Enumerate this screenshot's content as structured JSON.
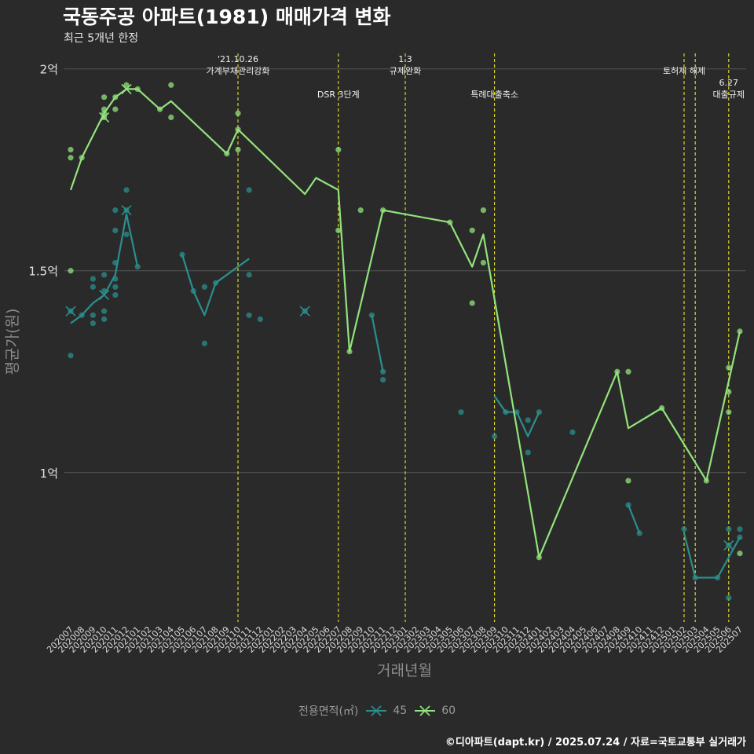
{
  "title": "국동주공 아파트(1981) 매매가격 변화",
  "subtitle": "최근 5개년 한정",
  "caption": "©디아파트(dapt.kr) / 2025.07.24 / 자료=국토교통부 실거래가",
  "colors": {
    "background": "#2b2a2a",
    "grid": "#555555",
    "event_line": "#e3e32e",
    "series_45": "#2a8f8f",
    "series_60": "#92e37c"
  },
  "chart_data": {
    "type": "line",
    "xlabel": "거래년월",
    "ylabel": "평균가(원)",
    "ylim": [
      6300,
      20500
    ],
    "yticks": [
      {
        "value": 10000,
        "label": "1억"
      },
      {
        "value": 15000,
        "label": "1.5억"
      },
      {
        "value": 20000,
        "label": "2억"
      }
    ],
    "x_categories": [
      "202007",
      "202008",
      "202009",
      "202010",
      "202011",
      "202012",
      "202101",
      "202102",
      "202103",
      "202104",
      "202105",
      "202106",
      "202107",
      "202108",
      "202109",
      "202110",
      "202111",
      "202112",
      "202201",
      "202202",
      "202203",
      "202204",
      "202205",
      "202206",
      "202207",
      "202208",
      "202209",
      "202210",
      "202211",
      "202212",
      "202301",
      "202302",
      "202303",
      "202304",
      "202305",
      "202306",
      "202307",
      "202308",
      "202309",
      "202310",
      "202311",
      "202312",
      "202401",
      "202402",
      "202403",
      "202404",
      "202405",
      "202406",
      "202407",
      "202408",
      "202409",
      "202410",
      "202411",
      "202412",
      "202501",
      "202502",
      "202503",
      "202504",
      "202505",
      "202506",
      "202507"
    ],
    "legend_title": "전용면적(㎡)",
    "series": [
      {
        "name": "45",
        "line_segments": [
          [
            [
              "202007",
              13700
            ],
            [
              "202008",
              13900
            ],
            [
              "202009",
              14200
            ],
            [
              "202010",
              14400
            ],
            [
              "202011",
              14900
            ],
            [
              "202012",
              16400
            ],
            [
              "202101",
              15100
            ]
          ],
          [
            [
              "202105",
              15400
            ],
            [
              "202106",
              14500
            ],
            [
              "202107",
              13900
            ],
            [
              "202108",
              14700
            ],
            [
              "202111",
              15300
            ]
          ],
          [
            [
              "202210",
              13900
            ],
            [
              "202211",
              12500
            ]
          ],
          [
            [
              "202309",
              11900
            ],
            [
              "202310",
              11500
            ],
            [
              "202311",
              11500
            ],
            [
              "202312",
              10900
            ],
            [
              "202401",
              11500
            ]
          ],
          [
            [
              "202409",
              9200
            ],
            [
              "202410",
              8500
            ]
          ],
          [
            [
              "202502",
              8500
            ],
            [
              "202503",
              7400
            ],
            [
              "202505",
              7400
            ],
            [
              "202507",
              8400
            ]
          ]
        ],
        "points": [
          [
            "202007",
            14000
          ],
          [
            "202007",
            12900
          ],
          [
            "202008",
            13900
          ],
          [
            "202009",
            13700
          ],
          [
            "202009",
            13900
          ],
          [
            "202009",
            14600
          ],
          [
            "202009",
            14800
          ],
          [
            "202010",
            14900
          ],
          [
            "202010",
            14500
          ],
          [
            "202010",
            13800
          ],
          [
            "202010",
            14000
          ],
          [
            "202011",
            14800
          ],
          [
            "202011",
            15200
          ],
          [
            "202011",
            16000
          ],
          [
            "202011",
            16500
          ],
          [
            "202011",
            14600
          ],
          [
            "202011",
            14400
          ],
          [
            "202012",
            16500
          ],
          [
            "202012",
            17000
          ],
          [
            "202012",
            15900
          ],
          [
            "202101",
            15100
          ],
          [
            "202105",
            15400
          ],
          [
            "202106",
            14500
          ],
          [
            "202107",
            13200
          ],
          [
            "202107",
            14600
          ],
          [
            "202108",
            14700
          ],
          [
            "202111",
            17000
          ],
          [
            "202111",
            14900
          ],
          [
            "202111",
            13900
          ],
          [
            "202112",
            13800
          ],
          [
            "202204",
            14000
          ],
          [
            "202210",
            13900
          ],
          [
            "202211",
            12500
          ],
          [
            "202211",
            12300
          ],
          [
            "202306",
            11500
          ],
          [
            "202309",
            10900
          ],
          [
            "202310",
            11500
          ],
          [
            "202311",
            11500
          ],
          [
            "202312",
            11300
          ],
          [
            "202312",
            10500
          ],
          [
            "202401",
            11500
          ],
          [
            "202404",
            11000
          ],
          [
            "202409",
            9200
          ],
          [
            "202410",
            8500
          ],
          [
            "202502",
            8600
          ],
          [
            "202503",
            7400
          ],
          [
            "202505",
            7400
          ],
          [
            "202506",
            8600
          ],
          [
            "202506",
            8200
          ],
          [
            "202506",
            6900
          ],
          [
            "202507",
            8600
          ],
          [
            "202507",
            8400
          ]
        ],
        "cross_markers": [
          [
            "202007",
            14000
          ],
          [
            "202010",
            14400
          ],
          [
            "202012",
            16500
          ],
          [
            "202204",
            14000
          ],
          [
            "202506",
            8200
          ]
        ]
      },
      {
        "name": "60",
        "line_segments": [
          [
            [
              "202007",
              17000
            ],
            [
              "202008",
              17800
            ],
            [
              "202010",
              18900
            ],
            [
              "202011",
              19300
            ],
            [
              "202012",
              19500
            ],
            [
              "202101",
              19500
            ],
            [
              "202103",
              19000
            ],
            [
              "202104",
              19200
            ],
            [
              "202109",
              17900
            ],
            [
              "202110",
              18500
            ],
            [
              "202204",
              16900
            ],
            [
              "202205",
              17300
            ],
            [
              "202207",
              17000
            ],
            [
              "202208",
              13000
            ],
            [
              "202211",
              16500
            ],
            [
              "202305",
              16200
            ],
            [
              "202307",
              15100
            ],
            [
              "202308",
              15900
            ],
            [
              "202401",
              7900
            ],
            [
              "202408",
              12500
            ],
            [
              "202409",
              11100
            ],
            [
              "202412",
              11600
            ],
            [
              "202504",
              9800
            ],
            [
              "202507",
              13500
            ]
          ]
        ],
        "points": [
          [
            "202007",
            18000
          ],
          [
            "202007",
            17800
          ],
          [
            "202007",
            15000
          ],
          [
            "202008",
            17800
          ],
          [
            "202010",
            19300
          ],
          [
            "202010",
            18900
          ],
          [
            "202010",
            18800
          ],
          [
            "202010",
            19000
          ],
          [
            "202011",
            19000
          ],
          [
            "202011",
            19300
          ],
          [
            "202012",
            19600
          ],
          [
            "202101",
            19500
          ],
          [
            "202103",
            19000
          ],
          [
            "202104",
            19600
          ],
          [
            "202104",
            18800
          ],
          [
            "202109",
            17900
          ],
          [
            "202110",
            18500
          ],
          [
            "202110",
            18900
          ],
          [
            "202110",
            18000
          ],
          [
            "202207",
            18000
          ],
          [
            "202207",
            16000
          ],
          [
            "202208",
            13000
          ],
          [
            "202209",
            16500
          ],
          [
            "202211",
            16500
          ],
          [
            "202305",
            16200
          ],
          [
            "202307",
            16000
          ],
          [
            "202307",
            14200
          ],
          [
            "202308",
            15200
          ],
          [
            "202308",
            16500
          ],
          [
            "202401",
            7900
          ],
          [
            "202408",
            12500
          ],
          [
            "202409",
            12500
          ],
          [
            "202409",
            9800
          ],
          [
            "202412",
            11600
          ],
          [
            "202504",
            9800
          ],
          [
            "202506",
            12600
          ],
          [
            "202506",
            12000
          ],
          [
            "202506",
            11500
          ],
          [
            "202507",
            13500
          ],
          [
            "202507",
            8000
          ]
        ],
        "cross_markers": [
          [
            "202010",
            18800
          ],
          [
            "202012",
            19500
          ]
        ]
      }
    ],
    "events": [
      {
        "x": "202110",
        "label": [
          "'21.10.26",
          "가계부채관리강화"
        ],
        "level": 0
      },
      {
        "x": "202207",
        "label": [
          "DSR 3단계"
        ],
        "level": 1
      },
      {
        "x": "202301",
        "label": [
          "1.3",
          "규제완화"
        ],
        "level": 0
      },
      {
        "x": "202309",
        "label": [
          "특례대출축소"
        ],
        "level": 1
      },
      {
        "x": "202502",
        "label": [
          "토허제 해제"
        ],
        "level": 0
      },
      {
        "x": "202503",
        "label": [],
        "level": 0
      },
      {
        "x": "202506",
        "label": [
          "6.27",
          "대출규제"
        ],
        "level": 1
      }
    ]
  }
}
